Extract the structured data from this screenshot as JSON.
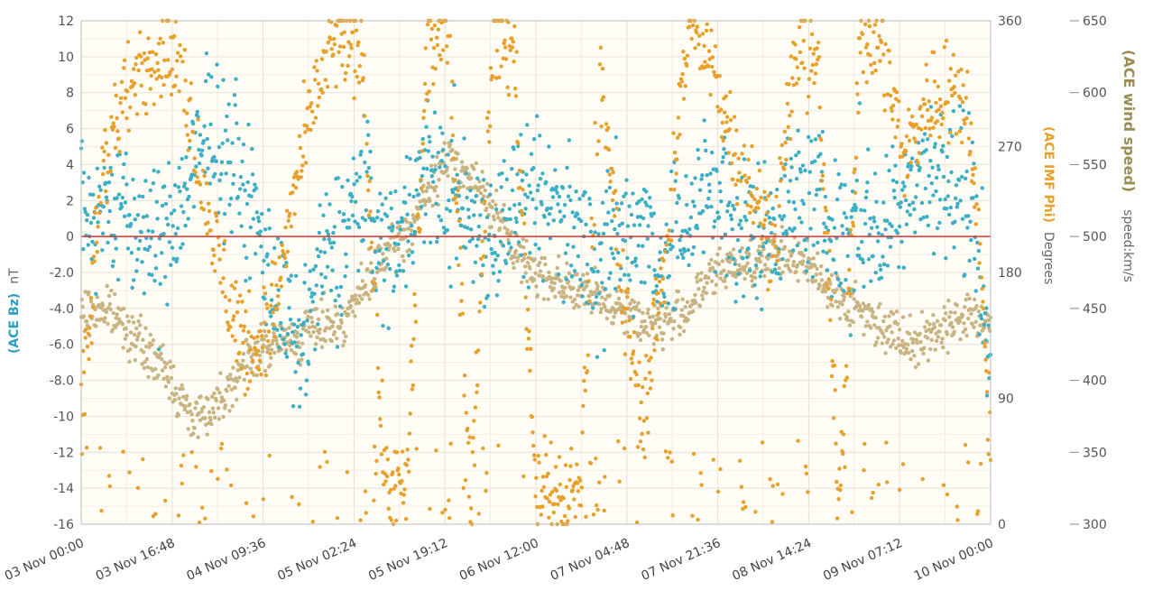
{
  "chart_data": {
    "type": "scatter",
    "title": "",
    "x_axis": {
      "tick_labels": [
        "03 Nov 00:00",
        "03 Nov 16:48",
        "04 Nov 09:36",
        "05 Nov 02:24",
        "05 Nov 19:12",
        "06 Nov 12:00",
        "07 Nov 04:48",
        "07 Nov 21:36",
        "08 Nov 14:24",
        "09 Nov 07:12",
        "10 Nov 00:00"
      ],
      "range_hours": [
        0,
        168
      ]
    },
    "y_left": {
      "series": "(ACE Bz)",
      "unit": "nT",
      "range": [
        -16,
        12
      ],
      "tick_labels": [
        "12",
        "10",
        "8",
        "6",
        "4",
        "2",
        "0",
        "-2.0",
        "-4.0",
        "-6.0",
        "-8.0",
        "-10",
        "-12",
        "-14",
        "-16"
      ],
      "color": "#3aafc6"
    },
    "y_right1": {
      "series": "(ACE IMF Phi)",
      "unit": "Degrees",
      "range": [
        0,
        360
      ],
      "tick_labels": [
        "360",
        "270",
        "180",
        "90",
        "0"
      ],
      "color": "#e8a02a"
    },
    "y_right2": {
      "series": "(ACE wind speed)",
      "unit": "speed:km/s",
      "range": [
        300,
        650
      ],
      "tick_labels": [
        "650",
        "600",
        "550",
        "500",
        "450",
        "400",
        "350",
        "300"
      ],
      "color": "#c8b382"
    },
    "grid": true,
    "zero_line_color": "#e03030",
    "series": [
      {
        "name": "(ACE wind speed)",
        "axis": "right2",
        "color": "#c8b382",
        "x_hours": [
          0,
          4,
          8,
          12,
          16,
          20,
          24,
          28,
          32,
          36,
          40,
          44,
          48,
          52,
          56,
          60,
          64,
          68,
          72,
          76,
          80,
          84,
          88,
          92,
          96,
          100,
          104,
          108,
          112,
          116,
          120,
          124,
          128,
          132,
          136,
          140,
          144,
          148,
          152,
          156,
          160,
          164,
          168
        ],
        "values": [
          445,
          450,
          440,
          420,
          405,
          375,
          380,
          400,
          420,
          425,
          430,
          440,
          440,
          462,
          487,
          500,
          530,
          555,
          540,
          520,
          490,
          475,
          470,
          462,
          455,
          452,
          440,
          440,
          450,
          470,
          480,
          482,
          488,
          485,
          475,
          458,
          448,
          438,
          430,
          428,
          440,
          445,
          440
        ],
        "spread": 10
      },
      {
        "name": "(ACE Bz)",
        "axis": "left",
        "color": "#3aafc6",
        "x_hours": [
          0,
          4,
          8,
          12,
          16,
          20,
          24,
          28,
          32,
          36,
          40,
          44,
          48,
          52,
          56,
          60,
          64,
          68,
          72,
          76,
          80,
          84,
          88,
          92,
          96,
          100,
          104,
          108,
          112,
          116,
          120,
          124,
          128,
          132,
          136,
          140,
          144,
          148,
          152,
          156,
          160,
          164,
          168
        ],
        "values": [
          1,
          2,
          1,
          0,
          0,
          3,
          6,
          4,
          1,
          -3,
          -7,
          -2,
          0,
          3,
          -1,
          1,
          4,
          2,
          1,
          0,
          2,
          1,
          2,
          0,
          -1,
          0,
          1,
          -2,
          1,
          3,
          1,
          0,
          1,
          2,
          2,
          0,
          1,
          0,
          3,
          4,
          3,
          2,
          -6
        ],
        "spread": 2.5
      },
      {
        "name": "(ACE IMF Phi)",
        "axis": "right1",
        "color": "#e8a02a",
        "x_hours": [
          0,
          4,
          8,
          12,
          16,
          20,
          24,
          28,
          32,
          36,
          40,
          44,
          48,
          52,
          56,
          60,
          64,
          68,
          72,
          76,
          80,
          84,
          88,
          92,
          96,
          100,
          104,
          108,
          112,
          116,
          120,
          124,
          128,
          132,
          136,
          140,
          144,
          148,
          152,
          156,
          160,
          164,
          168
        ],
        "values": [
          70,
          260,
          300,
          330,
          340,
          300,
          210,
          150,
          120,
          160,
          250,
          320,
          350,
          330,
          30,
          20,
          340,
          350,
          20,
          350,
          340,
          30,
          10,
          20,
          330,
          160,
          80,
          200,
          350,
          330,
          280,
          240,
          200,
          340,
          330,
          20,
          350,
          340,
          260,
          300,
          310,
          300,
          70
        ],
        "spread": 22
      }
    ]
  }
}
